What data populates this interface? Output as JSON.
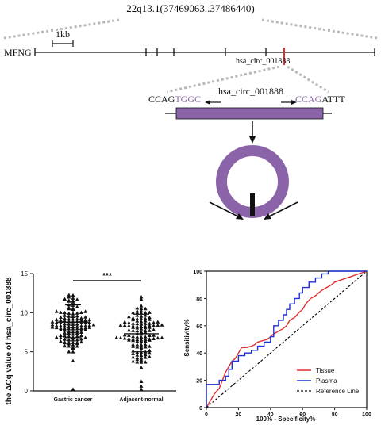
{
  "locus": {
    "coordinates": "22q13.1(37469063..37486440)",
    "gene": "MFNG",
    "scale_bar": "1kb",
    "circ_name": "hsa_circ_001888"
  },
  "junction": {
    "left_black": "CCAG",
    "left_purple": "TGGC",
    "circ_name": "hsa_circ_001888",
    "right_purple": "CCAG",
    "right_black": "ATTT"
  },
  "colors": {
    "purple": "#8a63a8",
    "red": "#e03030",
    "blue": "#1f2fd6",
    "dashed_gray": "#b8b8b8"
  },
  "chart_data": [
    {
      "type": "scatter",
      "ylabel": "the ΔCq value of hsa_circ_001888",
      "ylim": [
        0,
        15
      ],
      "yticks": [
        "0",
        "5",
        "10",
        "15"
      ],
      "categories": [
        "Gastric cancer",
        "Adjacent-normal"
      ],
      "summary": [
        {
          "name": "Gastric cancer",
          "mean": 8.8,
          "sd_low": 6.8,
          "sd_high": 11.0
        },
        {
          "name": "Adjacent-normal",
          "mean": 7.3,
          "sd_low": 5.0,
          "sd_high": 9.8
        }
      ],
      "significance": "***"
    },
    {
      "type": "line",
      "xlabel": "100% - Specificity%",
      "ylabel": "Sensitivity%",
      "xlim": [
        0,
        100
      ],
      "ylim": [
        0,
        100
      ],
      "xticks": [
        "0",
        "20",
        "40",
        "60",
        "80",
        "100"
      ],
      "yticks": [
        "0",
        "20",
        "40",
        "60",
        "80",
        "100"
      ],
      "legend": "bottom-right",
      "series": [
        {
          "name": "Tissue",
          "color": "#e03030",
          "x": [
            0,
            2,
            4,
            5,
            8,
            10,
            12,
            14,
            16,
            18,
            20,
            22,
            25,
            28,
            30,
            32,
            35,
            38,
            40,
            42,
            45,
            48,
            50,
            52,
            55,
            58,
            60,
            62,
            65,
            68,
            70,
            72,
            75,
            78,
            80,
            85,
            90,
            95,
            100
          ],
          "y": [
            0,
            4,
            8,
            10,
            14,
            20,
            26,
            30,
            34,
            36,
            40,
            44,
            44,
            45,
            46,
            48,
            49,
            50,
            52,
            54,
            56,
            58,
            60,
            64,
            66,
            70,
            72,
            76,
            80,
            82,
            84,
            86,
            88,
            90,
            92,
            94,
            96,
            98,
            100
          ]
        },
        {
          "name": "Plasma",
          "color": "#1f2fd6",
          "x": [
            0,
            0,
            8,
            8,
            12,
            12,
            14,
            14,
            16,
            16,
            20,
            20,
            24,
            24,
            28,
            28,
            32,
            32,
            36,
            36,
            40,
            40,
            42,
            42,
            45,
            45,
            48,
            48,
            50,
            50,
            52,
            52,
            55,
            55,
            58,
            58,
            60,
            60,
            64,
            64,
            68,
            68,
            72,
            72,
            76,
            76,
            100
          ],
          "y": [
            0,
            17,
            17,
            20,
            20,
            23,
            23,
            28,
            28,
            34,
            34,
            38,
            38,
            40,
            40,
            42,
            42,
            45,
            45,
            48,
            48,
            52,
            52,
            60,
            60,
            64,
            64,
            68,
            68,
            72,
            72,
            76,
            76,
            80,
            80,
            84,
            84,
            88,
            88,
            92,
            92,
            95,
            95,
            98,
            98,
            100,
            100
          ]
        },
        {
          "name": "Reference Line",
          "color": "#000000",
          "x": [
            0,
            100
          ],
          "y": [
            0,
            100
          ]
        }
      ]
    }
  ]
}
